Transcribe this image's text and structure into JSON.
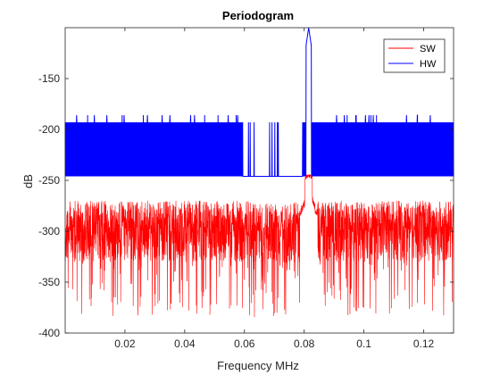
{
  "chart_data": {
    "type": "line",
    "title": "Periodogram",
    "xlabel": "Frequency MHz",
    "ylabel": "dB",
    "xlim": [
      0,
      0.13
    ],
    "ylim": [
      -400,
      -100
    ],
    "xticks": [
      0.02,
      0.04,
      0.06,
      0.08,
      0.1,
      0.12
    ],
    "xtick_labels": [
      "0.02",
      "0.04",
      "0.06",
      "0.08",
      "0.1",
      "0.12"
    ],
    "yticks": [
      -150,
      -200,
      -250,
      -300,
      -350,
      -400
    ],
    "ytick_labels": [
      "-150",
      "-200",
      "-250",
      "-300",
      "-350",
      "-400"
    ],
    "grid": false,
    "legend_position": "top-right",
    "series": [
      {
        "name": "SW",
        "color": "#ff0000",
        "description_values": {
          "noise_band_min": -350,
          "noise_band_max": -280,
          "occasional_dips_to": -385,
          "peak_frequency": 0.0815,
          "peak_value": -245
        }
      },
      {
        "name": "HW",
        "color": "#0000ff",
        "description_values": {
          "band_min": -246,
          "band_max": -193,
          "peak_frequency": 0.0815,
          "peak_value": -100,
          "gap_start": 0.0595,
          "gap_end": 0.0795
        }
      }
    ]
  }
}
